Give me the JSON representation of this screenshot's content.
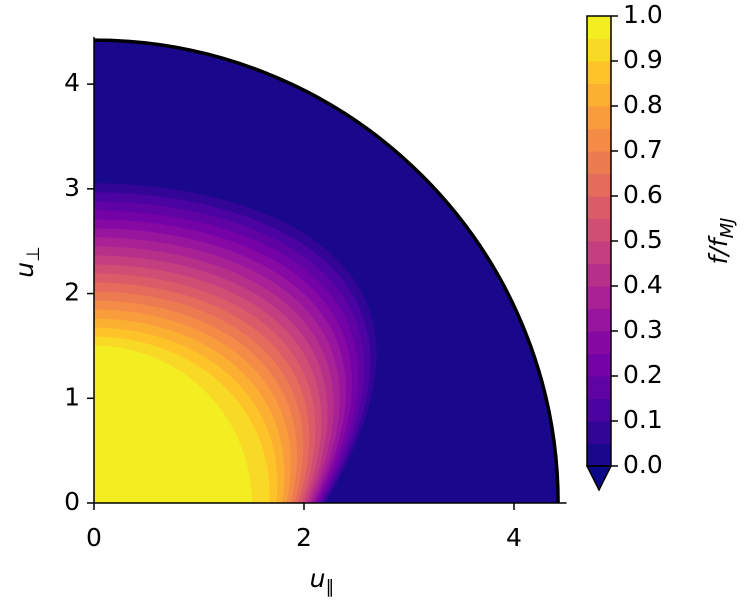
{
  "chart_data": {
    "type": "contour",
    "xlabel": {
      "text": "u",
      "subscript": "∥"
    },
    "ylabel": {
      "text": "u",
      "subscript": "⊥"
    },
    "xlim": [
      0,
      4.5
    ],
    "xticks": [
      0,
      2,
      4
    ],
    "ylim": [
      0,
      4.45
    ],
    "yticks": [
      0,
      1,
      2,
      3,
      4
    ],
    "boundary_radius": 4.42,
    "colormap": "plasma",
    "levels": [
      0,
      0.05,
      0.1,
      0.15,
      0.2,
      0.25,
      0.3,
      0.35,
      0.4,
      0.45,
      0.5,
      0.55,
      0.6,
      0.65,
      0.7,
      0.75,
      0.8,
      0.85,
      0.9,
      0.95,
      1
    ],
    "colorbar": {
      "label": {
        "text": "f/f",
        "subscript": "MJ"
      },
      "extend": "min",
      "lim": [
        0,
        1
      ],
      "ticks": [
        {
          "value": 0,
          "label": "0.0"
        },
        {
          "value": 0.1,
          "label": "0.1"
        },
        {
          "value": 0.2,
          "label": "0.2"
        },
        {
          "value": 0.3,
          "label": "0.3"
        },
        {
          "value": 0.4,
          "label": "0.4"
        },
        {
          "value": 0.5,
          "label": "0.5"
        },
        {
          "value": 0.6,
          "label": "0.6"
        },
        {
          "value": 0.7,
          "label": "0.7"
        },
        {
          "value": 0.8,
          "label": "0.8"
        },
        {
          "value": 0.9,
          "label": "0.9"
        },
        {
          "value": 1,
          "label": "1.0"
        }
      ]
    }
  }
}
